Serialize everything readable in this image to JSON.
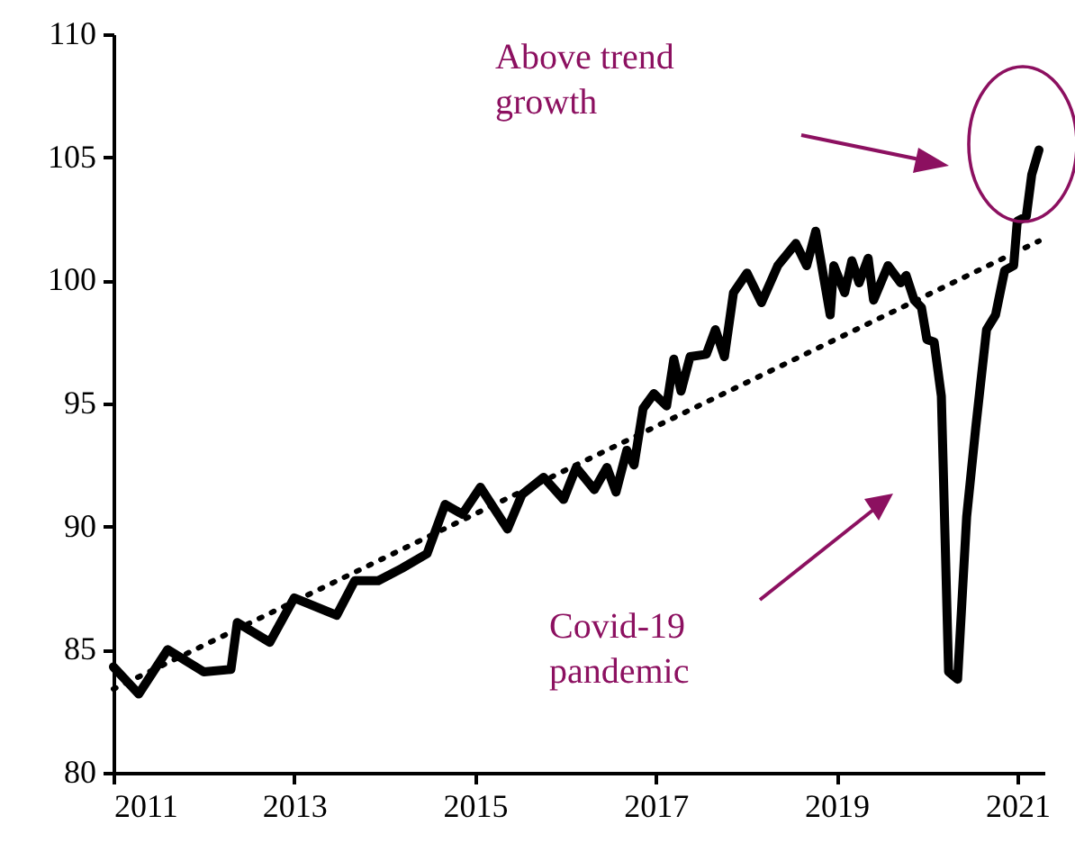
{
  "chart_data": {
    "type": "line",
    "xlim": [
      2011,
      2021.3
    ],
    "xticks": [
      2011,
      2013,
      2015,
      2017,
      2019,
      2021
    ],
    "ylim": [
      80,
      110
    ],
    "yticks": [
      80,
      85,
      90,
      95,
      100,
      105,
      110
    ],
    "grid": false,
    "annotations": [
      "Above trend growth",
      "Covid-19 pandemic"
    ],
    "series": [
      {
        "color": "#000000",
        "line_style": "solid",
        "x": [
          2011.0,
          2011.28,
          2011.6,
          2012.0,
          2012.3,
          2012.37,
          2012.73,
          2013.0,
          2013.47,
          2013.67,
          2013.93,
          2014.19,
          2014.47,
          2014.67,
          2014.86,
          2015.06,
          2015.36,
          2015.52,
          2015.76,
          2015.98,
          2016.12,
          2016.32,
          2016.46,
          2016.56,
          2016.68,
          2016.76,
          2016.86,
          2016.98,
          2017.12,
          2017.2,
          2017.28,
          2017.38,
          2017.56,
          2017.66,
          2017.76,
          2017.86,
          2018.01,
          2018.17,
          2018.35,
          2018.55,
          2018.67,
          2018.77,
          2018.93,
          2018.97,
          2019.09,
          2019.17,
          2019.25,
          2019.35,
          2019.41,
          2019.57,
          2019.71,
          2019.77,
          2019.86,
          2019.94,
          2020.0,
          2020.08,
          2020.16,
          2020.24,
          2020.34,
          2020.44,
          2020.54,
          2020.66,
          2020.76,
          2020.86,
          2020.96,
          2021.0,
          2021.1,
          2021.16,
          2021.24
        ],
        "values": [
          84.3,
          83.2,
          85.0,
          84.1,
          84.2,
          86.1,
          85.3,
          87.1,
          86.4,
          87.8,
          87.8,
          88.3,
          88.9,
          90.9,
          90.5,
          91.6,
          89.9,
          91.3,
          92.0,
          91.1,
          92.4,
          91.5,
          92.4,
          91.4,
          93.1,
          92.5,
          94.8,
          95.4,
          94.9,
          96.8,
          95.5,
          96.9,
          97.0,
          98.0,
          96.9,
          99.5,
          100.3,
          99.1,
          100.6,
          101.5,
          100.6,
          102.0,
          98.6,
          100.6,
          99.5,
          100.8,
          99.9,
          100.9,
          99.2,
          100.6,
          99.9,
          100.2,
          99.2,
          98.9,
          97.6,
          97.5,
          95.3,
          84.1,
          83.8,
          90.4,
          94.0,
          98.0,
          98.6,
          100.4,
          100.6,
          102.4,
          102.6,
          104.3,
          105.3
        ]
      },
      {
        "color": "#000000",
        "line_style": "dotted",
        "x": [
          2011.0,
          2021.24
        ],
        "values": [
          83.4,
          101.6
        ]
      }
    ]
  }
}
